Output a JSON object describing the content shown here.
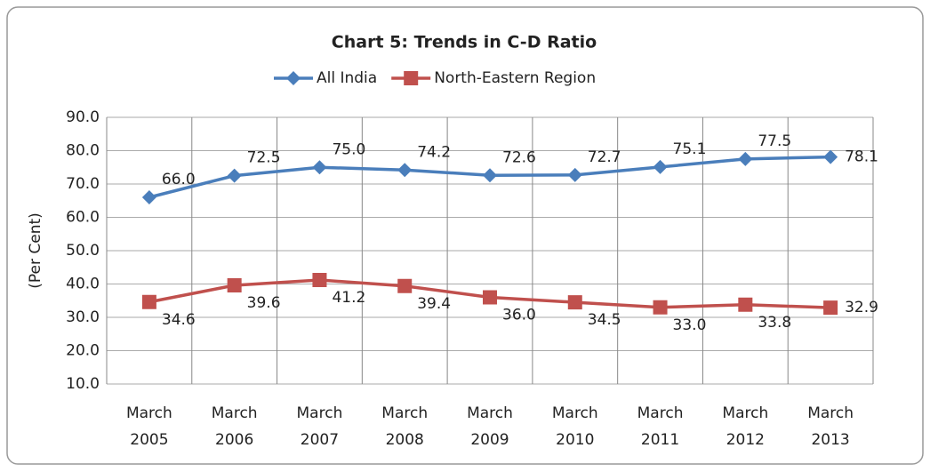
{
  "chart_data": {
    "type": "line",
    "title": "Chart 5: Trends in C-D Ratio",
    "y_label": "(Per Cent)",
    "categories": [
      "March 2005",
      "March 2006",
      "March 2007",
      "March 2008",
      "March 2009",
      "March 2010",
      "March 2011",
      "March 2012",
      "March 2013"
    ],
    "series": [
      {
        "name": "All India",
        "color": "#4a7ebb",
        "marker": "diamond",
        "values": [
          66.0,
          72.5,
          75.0,
          74.2,
          72.6,
          72.7,
          75.1,
          77.5,
          78.1
        ],
        "value_labels": [
          "66.0",
          "72.5",
          "75.0",
          "74.2",
          "72.6",
          "72.7",
          "75.1",
          "77.5",
          "78.1"
        ]
      },
      {
        "name": "North-Eastern Region",
        "color": "#c0504d",
        "marker": "square",
        "values": [
          34.6,
          39.6,
          41.2,
          39.4,
          36.0,
          34.5,
          33.0,
          33.8,
          32.9
        ],
        "value_labels": [
          "34.6",
          "39.6",
          "41.2",
          "39.4",
          "36.0",
          "34.5",
          "33.0",
          "33.8",
          "32.9"
        ]
      }
    ],
    "ylim": [
      10,
      90
    ],
    "yticks": [
      {
        "value": 10,
        "label": "10.0"
      },
      {
        "value": 20,
        "label": "20.0"
      },
      {
        "value": 30,
        "label": "30.0"
      },
      {
        "value": 40,
        "label": "40.0"
      },
      {
        "value": 50,
        "label": "50.0"
      },
      {
        "value": 60,
        "label": "60.0"
      },
      {
        "value": 70,
        "label": "70.0"
      },
      {
        "value": 80,
        "label": "80.0"
      },
      {
        "value": 90,
        "label": "90.0"
      }
    ],
    "grid": true,
    "legend": "top"
  }
}
